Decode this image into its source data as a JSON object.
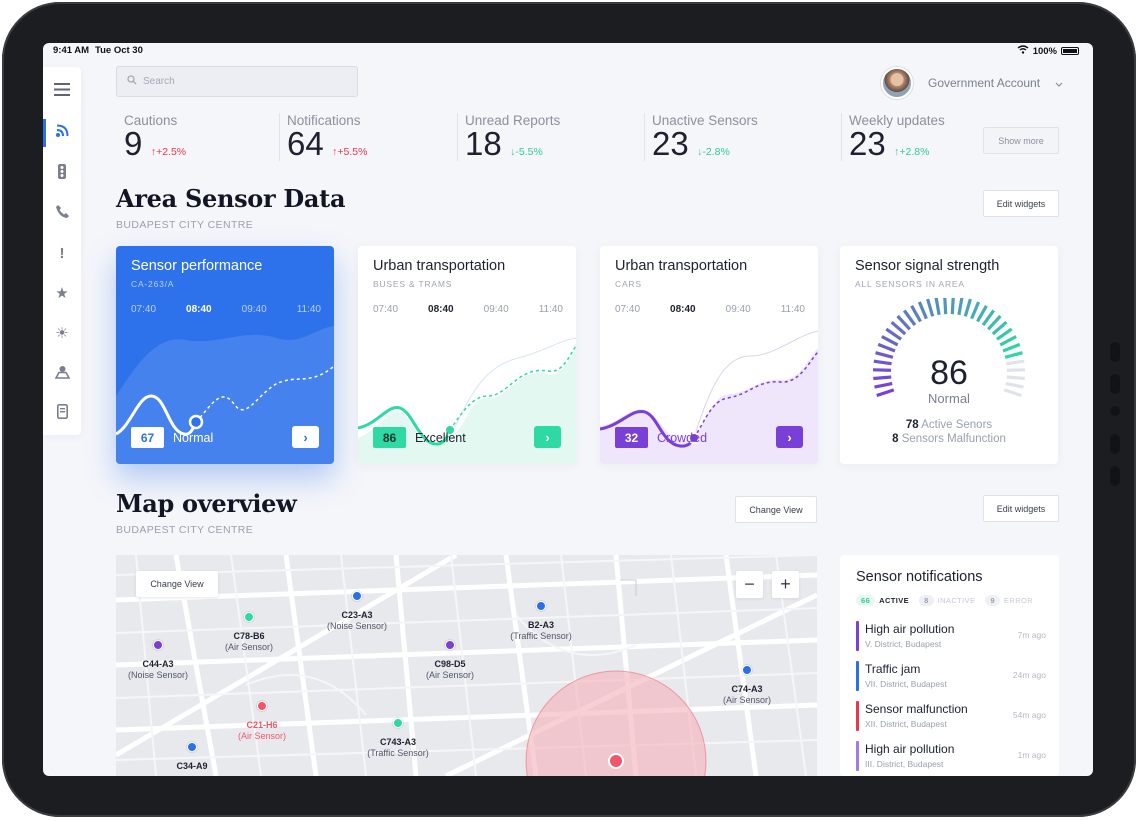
{
  "status_bar": {
    "time": "9:41 AM",
    "date": "Tue Oct 30",
    "battery": "100%"
  },
  "search": {
    "placeholder": "Search"
  },
  "account": {
    "name": "Government Account"
  },
  "sidebar": {
    "items": [
      {
        "icon": "menu-icon"
      },
      {
        "icon": "signal-icon",
        "active": true
      },
      {
        "icon": "traffic-light-icon"
      },
      {
        "icon": "phone-icon"
      },
      {
        "icon": "alert-icon"
      },
      {
        "icon": "star-icon"
      },
      {
        "icon": "sun-icon"
      },
      {
        "icon": "person-icon"
      },
      {
        "icon": "document-icon"
      }
    ]
  },
  "stats": [
    {
      "label": "Cautions",
      "value": "9",
      "change": "+2.5%",
      "trend": "up",
      "color": "#e8374b"
    },
    {
      "label": "Notifications",
      "value": "64",
      "change": "+5.5%",
      "trend": "up",
      "color": "#e8374b"
    },
    {
      "label": "Unread Reports",
      "value": "18",
      "change": "-5.5%",
      "trend": "down",
      "color": "#2ecb9b"
    },
    {
      "label": "Unactive Sensors",
      "value": "23",
      "change": "-2.8%",
      "trend": "down",
      "color": "#2ecb9b"
    },
    {
      "label": "Weekly updates",
      "value": "23",
      "change": "+2.8%",
      "trend": "up",
      "color": "#2ecb9b"
    }
  ],
  "show_more_label": "Show more",
  "area_section": {
    "title": "Area Sensor Data",
    "subtitle": "BUDAPEST CITY CENTRE",
    "edit_label": "Edit widgets"
  },
  "cards": [
    {
      "title": "Sensor performance",
      "subtitle": "CA-263/A",
      "times": [
        "07:40",
        "08:40",
        "09:40",
        "11:40"
      ],
      "current_time": "08:40",
      "value": "67",
      "state": "Normal",
      "accent": "#2d72ea"
    },
    {
      "title": "Urban transportation",
      "subtitle": "BUSES & TRAMS",
      "times": [
        "07:40",
        "08:40",
        "09:40",
        "11:40"
      ],
      "current_time": "08:40",
      "value": "86",
      "state": "Excellent",
      "accent": "#2ed9a3"
    },
    {
      "title": "Urban transportation",
      "subtitle": "CARS",
      "times": [
        "07:40",
        "08:40",
        "09:40",
        "11:40"
      ],
      "current_time": "08:40",
      "value": "32",
      "state": "Crowded",
      "accent": "#7a3fd6"
    }
  ],
  "gauge": {
    "title": "Sensor signal strength",
    "subtitle": "ALL SENSORS IN AREA",
    "value": "86",
    "level": 0.86,
    "label": "Normal",
    "active_count": "78",
    "active_label": "Active Senors",
    "malfunction_count": "8",
    "malfunction_label": "Sensors Malfunction"
  },
  "map_section": {
    "title": "Map overview",
    "subtitle": "BUDAPEST CITY CENTRE",
    "change_view_label": "Change View",
    "edit_label": "Edit widgets"
  },
  "map": {
    "change_view_label": "Change View",
    "zoom_out": "−",
    "zoom_in": "+",
    "sensors": [
      {
        "id": "C23-A3",
        "type": "(Noise Sensor)",
        "color": "#2b6fea"
      },
      {
        "id": "C78-B6",
        "type": "(Air Sensor)",
        "color": "#2ed9a3"
      },
      {
        "id": "B2-A3",
        "type": "(Traffic Sensor)",
        "color": "#2b6fea"
      },
      {
        "id": "C44-A3",
        "type": "(Noise Sensor)",
        "color": "#7a3fd6"
      },
      {
        "id": "C98-D5",
        "type": "(Air Sensor)",
        "color": "#7a3fd6"
      },
      {
        "id": "C74-A3",
        "type": "(Air Sensor)",
        "color": "#2b6fea"
      },
      {
        "id": "C21-H6",
        "type": "(Air Sensor)",
        "color": "#f0566a"
      },
      {
        "id": "C743-A3",
        "type": "(Traffic Sensor)",
        "color": "#2ed9a3"
      },
      {
        "id": "C34-A9",
        "type": "",
        "color": "#2b6fea"
      }
    ]
  },
  "notifications": {
    "title": "Sensor notifications",
    "tabs": [
      {
        "count": "66",
        "label": "ACTIVE"
      },
      {
        "count": "8",
        "label": "INACTIVE"
      },
      {
        "count": "9",
        "label": "ERROR"
      }
    ],
    "items": [
      {
        "title": "High air pollution",
        "location": "V. District, Budapest",
        "ago": "7m ago",
        "color": "#7a3fd6"
      },
      {
        "title": "Traffic jam",
        "location": "VII. District, Budapest",
        "ago": "24m ago",
        "color": "#2b6fea"
      },
      {
        "title": "Sensor malfunction",
        "location": "XII. District, Budapest",
        "ago": "54m ago",
        "color": "#e8374b"
      },
      {
        "title": "High air pollution",
        "location": "III. District, Budapest",
        "ago": "1m ago",
        "color": "#a07ae8"
      }
    ]
  }
}
